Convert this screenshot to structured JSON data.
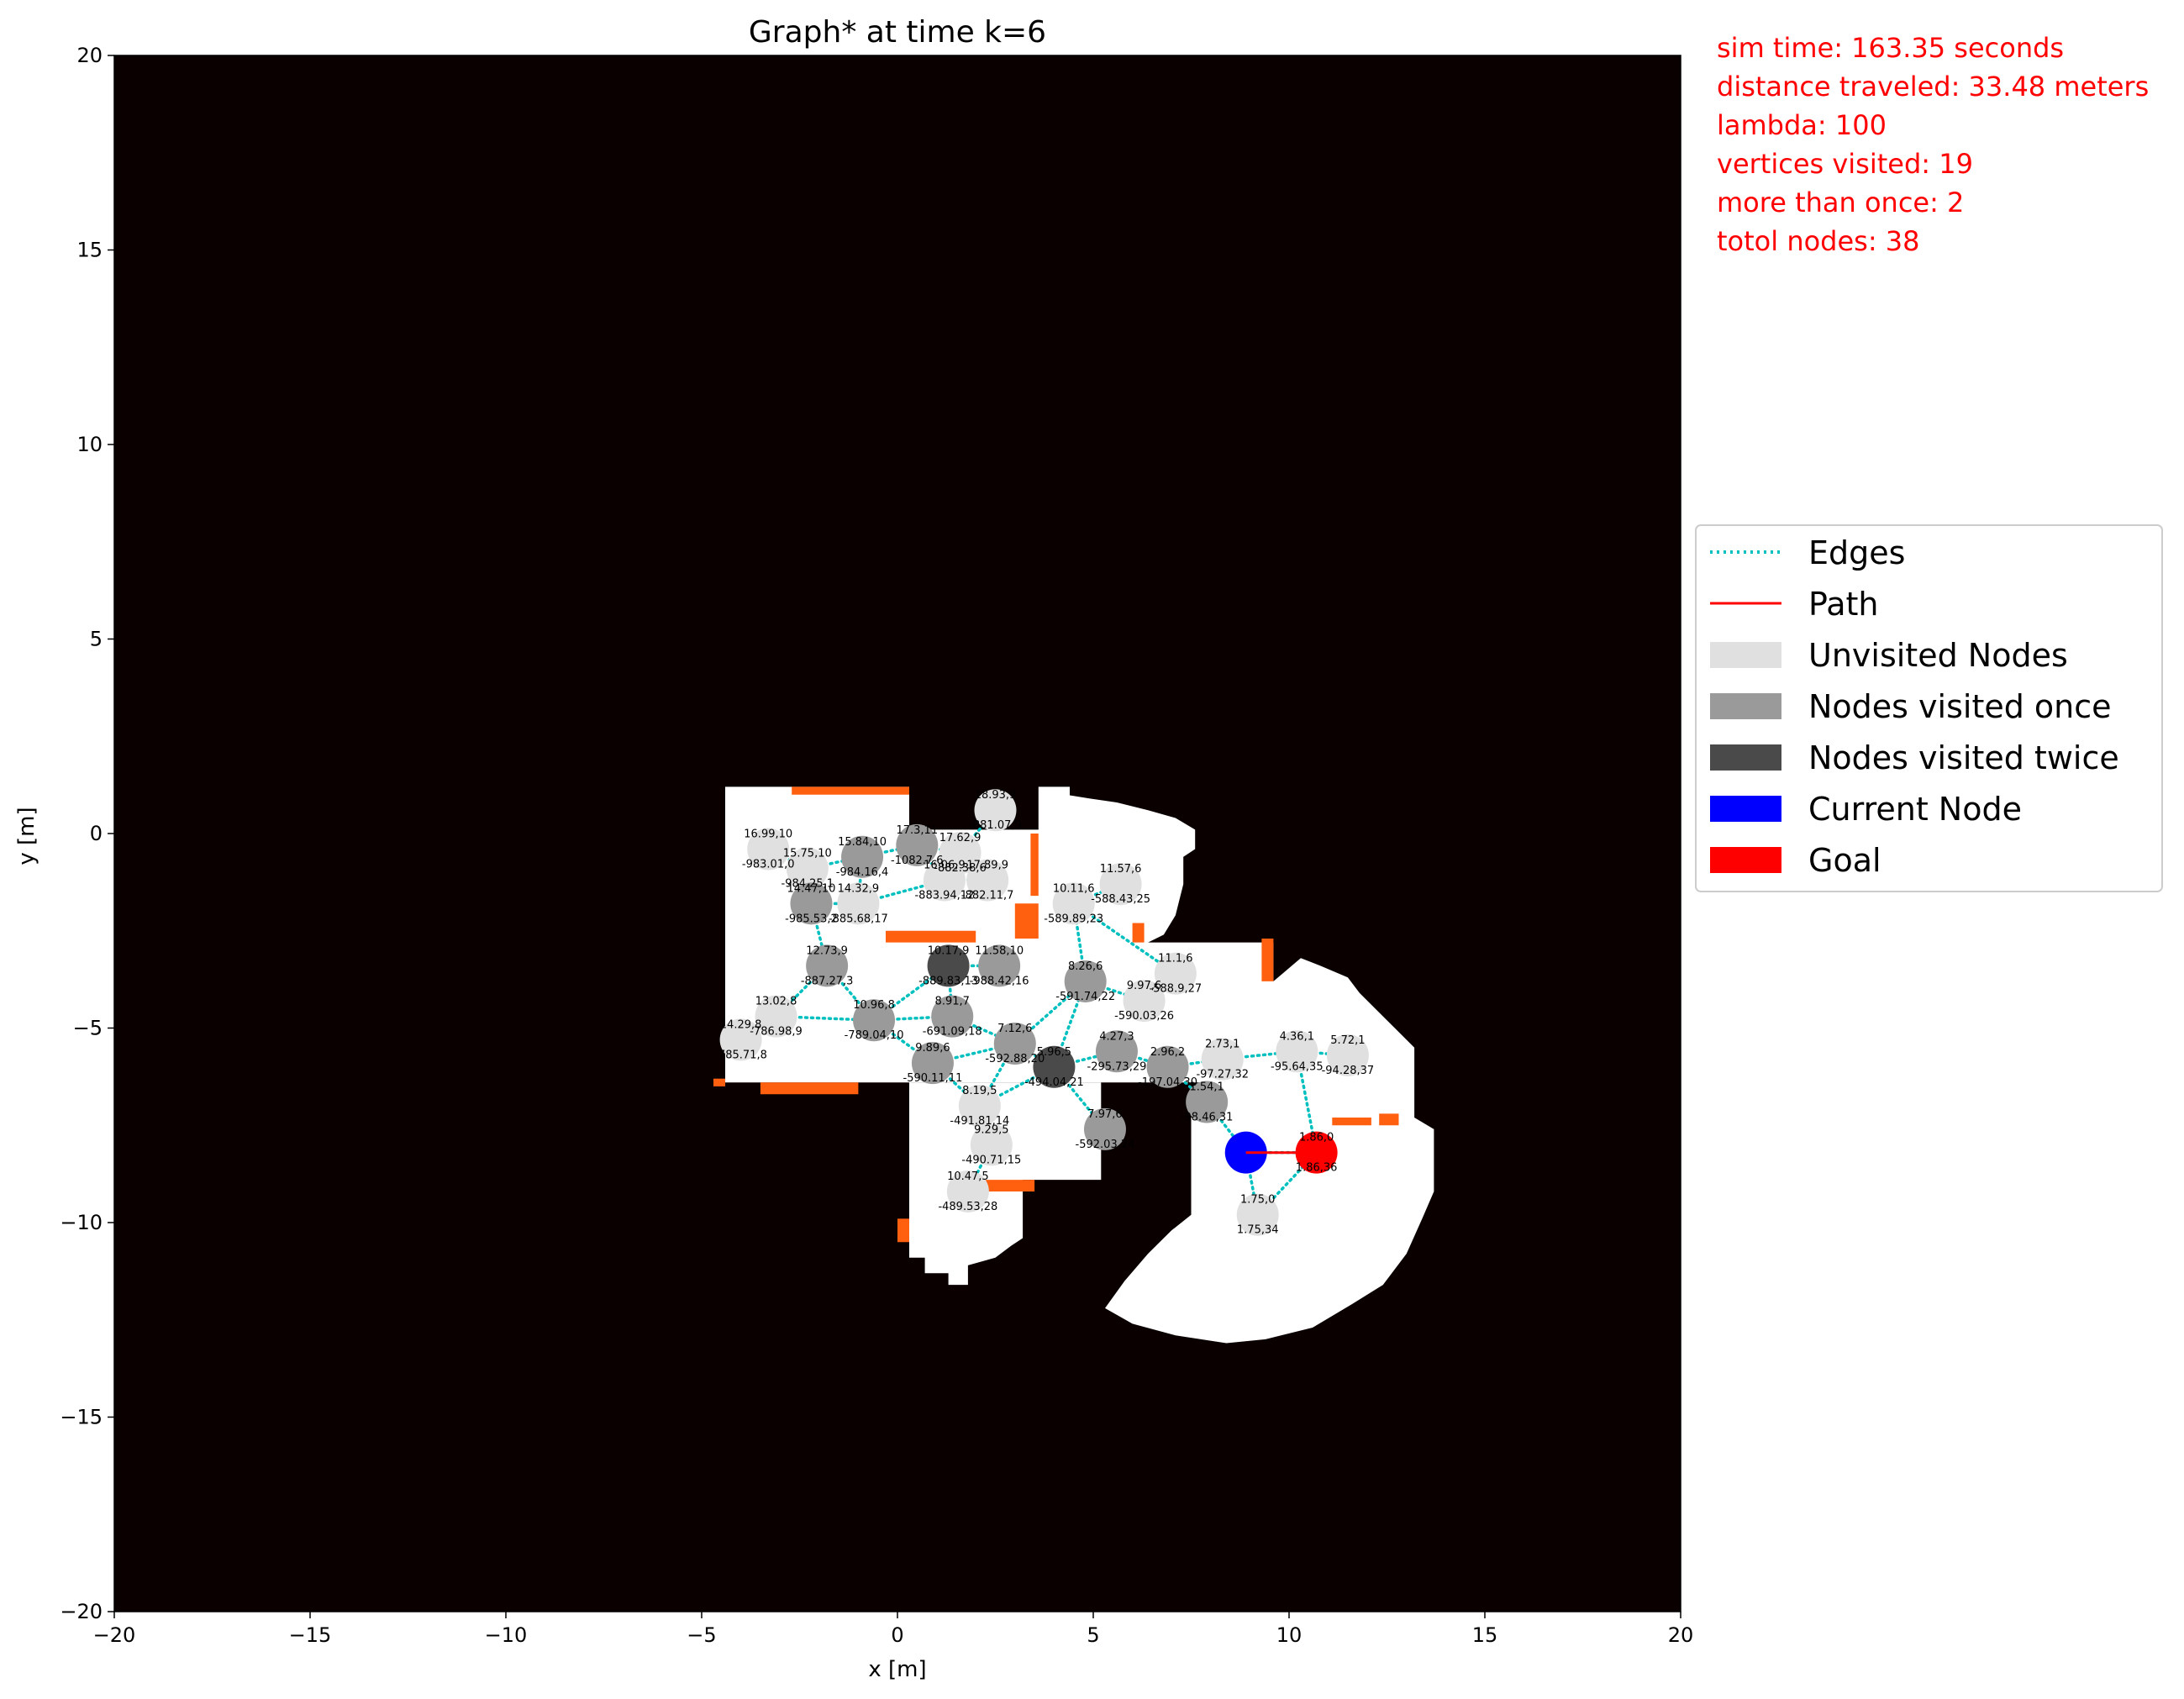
{
  "chart_data": {
    "type": "scatter",
    "title": "Graph* at time k=6",
    "xlabel": "x [m]",
    "ylabel": "y [m]",
    "xlim": [
      -20,
      20
    ],
    "ylim": [
      -20,
      20
    ],
    "xticks": [
      -20,
      -15,
      -10,
      -5,
      0,
      5,
      10,
      15,
      20
    ],
    "yticks": [
      -20,
      -15,
      -10,
      -5,
      0,
      5,
      10,
      15,
      20
    ],
    "tick_labels_x": [
      "−20",
      "−15",
      "−10",
      "−5",
      "0",
      "5",
      "10",
      "15",
      "20"
    ],
    "tick_labels_y": [
      "−20",
      "−15",
      "−10",
      "−5",
      "0",
      "5",
      "10",
      "15",
      "20"
    ],
    "grid": false,
    "legend_placement": "right",
    "background_color": "#0a0000",
    "free_space_color": "#ffffff",
    "frontier_color": "#ff6010",
    "edge_color": "#00bfbf",
    "path_color": "#ff0000",
    "node_colors": {
      "unvisited": "#e0e0e0",
      "visited_once": "#9a9a9a",
      "visited_twice": "#4a4a4a",
      "current": "#0000ff",
      "goal": "#ff0000"
    },
    "info_lines": [
      "sim time: 163.35 seconds",
      "distance traveled: 33.48 meters",
      "lambda: 100",
      "vertices visited: 19",
      "more than once: 2",
      "totol nodes: 38"
    ],
    "legend": [
      {
        "label": "Edges",
        "kind": "dotted",
        "color": "#00bfbf"
      },
      {
        "label": "Path",
        "kind": "line",
        "color": "#ff0000"
      },
      {
        "label": "Unvisited Nodes",
        "kind": "patch",
        "color": "#e0e0e0"
      },
      {
        "label": "Nodes visited once",
        "kind": "patch",
        "color": "#9a9a9a"
      },
      {
        "label": "Nodes visited twice",
        "kind": "patch",
        "color": "#4a4a4a"
      },
      {
        "label": "Current Node",
        "kind": "patch",
        "color": "#0000ff"
      },
      {
        "label": "Goal",
        "kind": "patch",
        "color": "#ff0000"
      }
    ],
    "free_space": [
      [
        [
          -4.4,
          1.2
        ],
        [
          0.3,
          1.2
        ],
        [
          0.3,
          0.1
        ],
        [
          3.6,
          0.1
        ],
        [
          3.6,
          1.2
        ],
        [
          4.4,
          1.2
        ],
        [
          4.4,
          -6.4
        ],
        [
          -4.4,
          -6.4
        ]
      ],
      [
        [
          0.3,
          -6.4
        ],
        [
          3.2,
          -6.4
        ],
        [
          3.2,
          -8.9
        ],
        [
          5.2,
          -8.9
        ],
        [
          5.2,
          -6.4
        ],
        [
          0.3,
          -6.4
        ],
        [
          0.3,
          -10.9
        ],
        [
          0.7,
          -10.9
        ],
        [
          0.7,
          -11.3
        ],
        [
          1.3,
          -11.3
        ],
        [
          1.3,
          -11.6
        ],
        [
          1.8,
          -11.6
        ],
        [
          1.8,
          -11.1
        ],
        [
          2.5,
          -10.9
        ],
        [
          2.9,
          -10.6
        ],
        [
          3.2,
          -10.4
        ],
        [
          3.2,
          -6.4
        ]
      ],
      [
        [
          3.6,
          -0.3
        ],
        [
          4.3,
          1.0
        ],
        [
          4.9,
          0.9
        ],
        [
          5.6,
          0.8
        ],
        [
          6.4,
          0.6
        ],
        [
          7.1,
          0.4
        ],
        [
          7.6,
          0.1
        ],
        [
          7.6,
          -0.4
        ],
        [
          7.3,
          -0.6
        ],
        [
          7.3,
          -1.3
        ],
        [
          7.1,
          -2.1
        ],
        [
          6.8,
          -2.6
        ],
        [
          6.4,
          -2.8
        ],
        [
          9.6,
          -2.8
        ],
        [
          9.6,
          -3.8
        ],
        [
          10.3,
          -3.2
        ],
        [
          10.8,
          -3.4
        ],
        [
          11.5,
          -3.7
        ],
        [
          11.8,
          -4.1
        ],
        [
          12.3,
          -4.6
        ],
        [
          12.7,
          -5.0
        ],
        [
          13.2,
          -5.5
        ],
        [
          13.2,
          -7.3
        ],
        [
          13.7,
          -7.6
        ],
        [
          13.7,
          -9.2
        ],
        [
          13.4,
          -9.9
        ],
        [
          13.0,
          -10.8
        ],
        [
          12.4,
          -11.6
        ],
        [
          11.6,
          -12.1
        ],
        [
          10.6,
          -12.7
        ],
        [
          9.4,
          -13.0
        ],
        [
          8.4,
          -13.1
        ],
        [
          7.1,
          -12.9
        ],
        [
          6.0,
          -12.6
        ],
        [
          5.3,
          -12.2
        ],
        [
          5.8,
          -11.5
        ],
        [
          6.4,
          -10.8
        ],
        [
          7.0,
          -10.2
        ],
        [
          7.5,
          -9.8
        ],
        [
          7.5,
          -7.3
        ],
        [
          8.1,
          -7.3
        ],
        [
          8.1,
          -6.4
        ],
        [
          4.4,
          -6.4
        ],
        [
          4.4,
          -4.2
        ],
        [
          3.6,
          -4.2
        ]
      ]
    ],
    "frontiers": [
      [
        [
          -2.7,
          1.0
        ],
        [
          0.3,
          1.0
        ],
        [
          0.3,
          1.2
        ],
        [
          -2.7,
          1.2
        ]
      ],
      [
        [
          -0.3,
          -2.5
        ],
        [
          2.0,
          -2.5
        ],
        [
          2.0,
          -2.8
        ],
        [
          -0.3,
          -2.8
        ]
      ],
      [
        [
          3.0,
          -1.8
        ],
        [
          3.6,
          -1.8
        ],
        [
          3.6,
          -2.7
        ],
        [
          3.0,
          -2.7
        ]
      ],
      [
        [
          3.4,
          0.0
        ],
        [
          3.6,
          0.0
        ],
        [
          3.6,
          -1.6
        ],
        [
          3.4,
          -1.6
        ]
      ],
      [
        [
          -4.7,
          -6.3
        ],
        [
          -4.4,
          -6.3
        ],
        [
          -4.4,
          -6.5
        ],
        [
          -4.7,
          -6.5
        ]
      ],
      [
        [
          -3.5,
          -6.4
        ],
        [
          -1.0,
          -6.4
        ],
        [
          -1.0,
          -6.7
        ],
        [
          -3.5,
          -6.7
        ]
      ],
      [
        [
          2.2,
          -8.9
        ],
        [
          3.5,
          -8.9
        ],
        [
          3.5,
          -9.2
        ],
        [
          2.2,
          -9.2
        ]
      ],
      [
        [
          0.0,
          -9.9
        ],
        [
          0.3,
          -9.9
        ],
        [
          0.3,
          -10.5
        ],
        [
          0.0,
          -10.5
        ]
      ],
      [
        [
          6.0,
          -2.3
        ],
        [
          6.3,
          -2.3
        ],
        [
          6.3,
          -2.8
        ],
        [
          6.0,
          -2.8
        ]
      ],
      [
        [
          9.3,
          -2.7
        ],
        [
          9.6,
          -2.7
        ],
        [
          9.6,
          -3.8
        ],
        [
          9.3,
          -3.8
        ]
      ],
      [
        [
          11.1,
          -7.3
        ],
        [
          12.1,
          -7.3
        ],
        [
          12.1,
          -7.5
        ],
        [
          11.1,
          -7.5
        ]
      ],
      [
        [
          12.3,
          -7.2
        ],
        [
          12.8,
          -7.2
        ],
        [
          12.8,
          -7.5
        ],
        [
          12.3,
          -7.5
        ]
      ]
    ],
    "nodes": [
      {
        "id": 0,
        "x": -3.3,
        "y": -0.4,
        "label": [
          "16.99,10",
          "-983.01,0"
        ],
        "status": "unvisited"
      },
      {
        "id": 1,
        "x": -2.3,
        "y": -0.9,
        "label": [
          "15.75,10",
          "-984.25,1"
        ],
        "status": "unvisited"
      },
      {
        "id": 2,
        "x": -2.2,
        "y": -1.8,
        "label": [
          "14.47,10",
          "-985.53,2"
        ],
        "status": "visited_once"
      },
      {
        "id": 3,
        "x": -1.8,
        "y": -3.4,
        "label": [
          "12.73,9",
          "-887.27,3"
        ],
        "status": "visited_once"
      },
      {
        "id": 4,
        "x": -0.9,
        "y": -0.6,
        "label": [
          "15.84,10",
          "-984.16,4"
        ],
        "status": "visited_once"
      },
      {
        "id": 5,
        "x": -1.0,
        "y": -1.8,
        "label": [
          "14.32,9",
          "-885.68,17"
        ],
        "status": "unvisited"
      },
      {
        "id": 6,
        "x": 0.5,
        "y": -0.3,
        "label": [
          "17.3,11",
          "-1082.7,6"
        ],
        "status": "visited_once"
      },
      {
        "id": 7,
        "x": 1.2,
        "y": -1.2,
        "label": [
          "16.06,9",
          "-883.94,12"
        ],
        "status": "unvisited"
      },
      {
        "id": 8,
        "x": 1.6,
        "y": -0.5,
        "label": [
          "17.62,9",
          "-882.38,6"
        ],
        "status": "unvisited"
      },
      {
        "id": 9,
        "x": 2.5,
        "y": 0.6,
        "label": [
          "18.93,9",
          "-881.07,9"
        ],
        "status": "unvisited"
      },
      {
        "id": 10,
        "x": 2.3,
        "y": -1.2,
        "label": [
          "17.89,9",
          "-882.11,7"
        ],
        "status": "unvisited"
      },
      {
        "id": 11,
        "x": -3.1,
        "y": -4.7,
        "label": [
          "13.02,8",
          "-786.98,9"
        ],
        "status": "unvisited"
      },
      {
        "id": 12,
        "x": -4.0,
        "y": -5.3,
        "label": [
          "14.29,8",
          "-785.71,8"
        ],
        "status": "unvisited"
      },
      {
        "id": 13,
        "x": -0.6,
        "y": -4.8,
        "label": [
          "10.96,8",
          "-789.04,10"
        ],
        "status": "visited_once"
      },
      {
        "id": 14,
        "x": 1.3,
        "y": -3.4,
        "label": [
          "10.17,9",
          "-889.83,13"
        ],
        "status": "visited_twice"
      },
      {
        "id": 15,
        "x": 2.6,
        "y": -3.4,
        "label": [
          "11.58,10",
          "-988.42,16"
        ],
        "status": "visited_once"
      },
      {
        "id": 16,
        "x": 1.4,
        "y": -4.7,
        "label": [
          "8.91,7",
          "-691.09,18"
        ],
        "status": "visited_once"
      },
      {
        "id": 17,
        "x": 0.9,
        "y": -5.9,
        "label": [
          "9.89,6",
          "-590.11,11"
        ],
        "status": "visited_once"
      },
      {
        "id": 18,
        "x": 3.0,
        "y": -5.4,
        "label": [
          "7.12,6",
          "-592.88,20"
        ],
        "status": "visited_once"
      },
      {
        "id": 19,
        "x": 2.1,
        "y": -7.0,
        "label": [
          "8.19,5",
          "-491.81,14"
        ],
        "status": "unvisited"
      },
      {
        "id": 20,
        "x": 2.4,
        "y": -8.0,
        "label": [
          "9.29,5",
          "-490.71,15"
        ],
        "status": "unvisited"
      },
      {
        "id": 21,
        "x": 1.8,
        "y": -9.2,
        "label": [
          "10.47,5",
          "-489.53,28"
        ],
        "status": "unvisited"
      },
      {
        "id": 22,
        "x": 4.0,
        "y": -6.0,
        "label": [
          "5.96,5",
          "-494.04,21"
        ],
        "status": "visited_twice"
      },
      {
        "id": 23,
        "x": 4.8,
        "y": -3.8,
        "label": [
          "8.26,6",
          "-591.74,22"
        ],
        "status": "visited_once"
      },
      {
        "id": 24,
        "x": 4.5,
        "y": -1.8,
        "label": [
          "10.11,6",
          "-589.89,23"
        ],
        "status": "unvisited"
      },
      {
        "id": 25,
        "x": 5.7,
        "y": -1.3,
        "label": [
          "11.57,6",
          "-588.43,25"
        ],
        "status": "unvisited"
      },
      {
        "id": 26,
        "x": 6.3,
        "y": -4.3,
        "label": [
          "9.97,6",
          "-590.03,26"
        ],
        "status": "unvisited"
      },
      {
        "id": 27,
        "x": 7.1,
        "y": -3.6,
        "label": [
          "11.1,6",
          "-588.9,27"
        ],
        "status": "unvisited"
      },
      {
        "id": 28,
        "x": 5.6,
        "y": -5.6,
        "label": [
          "4.27,3",
          "-295.73,29"
        ],
        "status": "visited_once"
      },
      {
        "id": 29,
        "x": 5.3,
        "y": -7.6,
        "label": [
          "7.97,6",
          "-592.03,24"
        ],
        "status": "visited_once"
      },
      {
        "id": 30,
        "x": 6.9,
        "y": -6.0,
        "label": [
          "2.96,2",
          "-197.04,30"
        ],
        "status": "visited_once"
      },
      {
        "id": 31,
        "x": 7.9,
        "y": -6.9,
        "label": [
          "1.54,1",
          "-98.46,31"
        ],
        "status": "visited_once"
      },
      {
        "id": 32,
        "x": 8.3,
        "y": -5.8,
        "label": [
          "2.73,1",
          "-97.27,32"
        ],
        "status": "unvisited"
      },
      {
        "id": 33,
        "x": 10.2,
        "y": -5.6,
        "label": [
          "4.36,1",
          "-95.64,35"
        ],
        "status": "unvisited"
      },
      {
        "id": 34,
        "x": 11.5,
        "y": -5.7,
        "label": [
          "5.72,1",
          "-94.28,37"
        ],
        "status": "unvisited"
      },
      {
        "id": 35,
        "x": 9.2,
        "y": -9.8,
        "label": [
          "1.75,0",
          "1.75,34"
        ],
        "status": "unvisited"
      },
      {
        "id": 36,
        "x": 8.9,
        "y": -8.2,
        "label": [
          "",
          ""
        ],
        "status": "current"
      },
      {
        "id": 37,
        "x": 10.7,
        "y": -8.2,
        "label": [
          "1.86,0",
          "1.86,36"
        ],
        "status": "goal"
      }
    ],
    "edges": [
      [
        0,
        1
      ],
      [
        1,
        4
      ],
      [
        1,
        2
      ],
      [
        2,
        5
      ],
      [
        2,
        3
      ],
      [
        4,
        5
      ],
      [
        4,
        6
      ],
      [
        6,
        8
      ],
      [
        8,
        9
      ],
      [
        6,
        7
      ],
      [
        7,
        10
      ],
      [
        5,
        7
      ],
      [
        3,
        11
      ],
      [
        11,
        12
      ],
      [
        11,
        13
      ],
      [
        3,
        13
      ],
      [
        13,
        14
      ],
      [
        14,
        15
      ],
      [
        14,
        16
      ],
      [
        13,
        16
      ],
      [
        13,
        17
      ],
      [
        16,
        18
      ],
      [
        17,
        18
      ],
      [
        18,
        19
      ],
      [
        17,
        19
      ],
      [
        19,
        20
      ],
      [
        20,
        21
      ],
      [
        18,
        22
      ],
      [
        19,
        22
      ],
      [
        18,
        23
      ],
      [
        23,
        24
      ],
      [
        24,
        25
      ],
      [
        24,
        27
      ],
      [
        23,
        26
      ],
      [
        26,
        27
      ],
      [
        22,
        23
      ],
      [
        22,
        28
      ],
      [
        22,
        29
      ],
      [
        28,
        30
      ],
      [
        30,
        32
      ],
      [
        30,
        31
      ],
      [
        32,
        33
      ],
      [
        33,
        34
      ],
      [
        33,
        37
      ],
      [
        31,
        36
      ],
      [
        36,
        35
      ],
      [
        35,
        37
      ],
      [
        36,
        37
      ]
    ],
    "path": [
      [
        8.9,
        -8.2
      ],
      [
        10.7,
        -8.2
      ]
    ]
  }
}
